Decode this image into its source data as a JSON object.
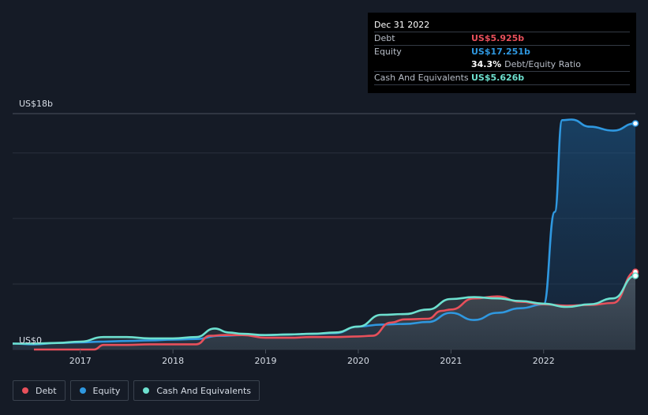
{
  "tooltip": {
    "date": "Dec 31 2022",
    "debt_label": "Debt",
    "debt_value": "US$5.925b",
    "equity_label": "Equity",
    "equity_value": "US$17.251b",
    "ratio_value": "34.3%",
    "ratio_label": "Debt/Equity Ratio",
    "cash_label": "Cash And Equivalents",
    "cash_value": "US$5.626b"
  },
  "legend": {
    "debt": "Debt",
    "equity": "Equity",
    "cash": "Cash And Equivalents"
  },
  "colors": {
    "debt": "#e8505b",
    "equity": "#2f98e0",
    "cash": "#6de0cf",
    "background": "#151b26"
  },
  "chart_data": {
    "type": "line",
    "y_max_label": "US$18b",
    "y_min_label": "US$0",
    "ylim": [
      0,
      18
    ],
    "xlim": [
      2016.27,
      2022.99
    ],
    "x_ticks": [
      "2017",
      "2018",
      "2019",
      "2020",
      "2021",
      "2022"
    ],
    "legend_position": "bottom-left",
    "series": [
      {
        "name": "Debt",
        "x": [
          2016.5,
          2016.75,
          2017.0,
          2017.15,
          2017.25,
          2017.5,
          2017.75,
          2018.0,
          2018.25,
          2018.4,
          2018.55,
          2018.75,
          2019.0,
          2019.25,
          2019.5,
          2019.75,
          2020.0,
          2020.15,
          2020.35,
          2020.5,
          2020.75,
          2020.9,
          2021.0,
          2021.25,
          2021.5,
          2021.75,
          2022.0,
          2022.25,
          2022.5,
          2022.75,
          2022.99
        ],
        "values": [
          0.0,
          0.0,
          0.0,
          0.0,
          0.35,
          0.35,
          0.4,
          0.4,
          0.4,
          1.05,
          1.1,
          1.1,
          0.9,
          0.9,
          0.95,
          0.95,
          1.0,
          1.05,
          2.05,
          2.3,
          2.35,
          2.95,
          3.05,
          3.9,
          4.05,
          3.65,
          3.45,
          3.35,
          3.4,
          3.55,
          5.925
        ]
      },
      {
        "name": "Equity",
        "x": [
          2016.27,
          2016.5,
          2016.75,
          2017.0,
          2017.25,
          2017.5,
          2017.75,
          2018.0,
          2018.25,
          2018.5,
          2018.75,
          2019.0,
          2019.25,
          2019.5,
          2019.75,
          2020.0,
          2020.25,
          2020.5,
          2020.75,
          2021.0,
          2021.25,
          2021.5,
          2021.75,
          2022.0,
          2022.12,
          2022.2,
          2022.3,
          2022.5,
          2022.75,
          2022.99
        ],
        "values": [
          0.45,
          0.4,
          0.5,
          0.55,
          0.6,
          0.65,
          0.7,
          0.75,
          0.8,
          1.05,
          1.1,
          1.1,
          1.15,
          1.2,
          1.25,
          1.75,
          1.9,
          1.95,
          2.1,
          2.8,
          2.25,
          2.8,
          3.15,
          3.45,
          10.5,
          17.5,
          17.55,
          17.0,
          16.7,
          17.251
        ]
      },
      {
        "name": "Cash And Equivalents",
        "x": [
          2016.27,
          2016.5,
          2016.75,
          2017.0,
          2017.25,
          2017.5,
          2017.75,
          2018.0,
          2018.25,
          2018.45,
          2018.6,
          2018.75,
          2019.0,
          2019.25,
          2019.5,
          2019.75,
          2020.0,
          2020.25,
          2020.5,
          2020.75,
          2021.0,
          2021.25,
          2021.5,
          2021.75,
          2022.0,
          2022.25,
          2022.5,
          2022.75,
          2022.99
        ],
        "values": [
          0.45,
          0.45,
          0.5,
          0.6,
          0.95,
          0.95,
          0.85,
          0.85,
          0.95,
          1.6,
          1.3,
          1.2,
          1.1,
          1.15,
          1.2,
          1.3,
          1.75,
          2.65,
          2.7,
          3.05,
          3.85,
          4.0,
          3.9,
          3.7,
          3.5,
          3.25,
          3.45,
          3.9,
          5.626
        ]
      }
    ]
  }
}
